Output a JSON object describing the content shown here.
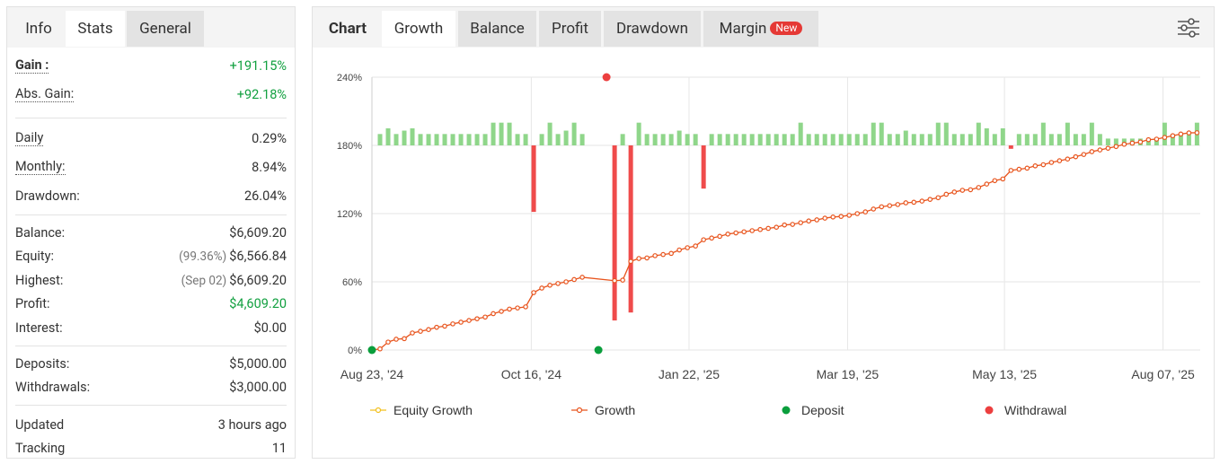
{
  "stats": {
    "tabs": [
      "Info",
      "Stats",
      "General"
    ],
    "groups": [
      [
        {
          "label": "Gain :",
          "value": "+191.15%"
        },
        {
          "label": "Abs. Gain:",
          "value": "+92.18%"
        }
      ],
      [
        {
          "label": "Daily",
          "value": "0.29%"
        },
        {
          "label": "Monthly:",
          "value": "8.94%"
        },
        {
          "label": "Drawdown:",
          "value": "26.04%"
        }
      ],
      [
        {
          "label": "Balance:",
          "value": "$6,609.20"
        },
        {
          "label": "Equity:",
          "note": "(99.36%)",
          "value": "$6,566.84"
        },
        {
          "label": "Highest:",
          "note": "(Sep 02)",
          "value": "$6,609.20"
        },
        {
          "label": "Profit:",
          "value": "$4,609.20"
        },
        {
          "label": "Interest:",
          "value": "$0.00"
        }
      ],
      [
        {
          "label": "Deposits:",
          "value": "$5,000.00"
        },
        {
          "label": "Withdrawals:",
          "value": "$3,000.00"
        }
      ],
      [
        {
          "label": "Updated",
          "value": "3 hours ago"
        },
        {
          "label": "Tracking",
          "value": 11
        }
      ]
    ]
  },
  "chart_tabs": {
    "label": "Chart",
    "tabs": [
      "Growth",
      "Balance",
      "Profit",
      "Drawdown",
      "Margin"
    ],
    "badge": "New"
  },
  "chart_data": {
    "type": "line",
    "xlim": [
      0,
      102.4
    ],
    "xticks": [
      {
        "value": 0,
        "label": "Aug 23, '24"
      },
      {
        "value": 19.7,
        "label": "Oct 16, '24"
      },
      {
        "value": 39.2,
        "label": "Jan 22, '25"
      },
      {
        "value": 58.8,
        "label": "Mar 19, '25"
      },
      {
        "value": 78.2,
        "label": "May 13, '25"
      },
      {
        "value": 97.8,
        "label": "Aug 07, '25"
      }
    ],
    "ylim": [
      0,
      240
    ],
    "yticks": [
      {
        "value": 0,
        "label": "0%"
      },
      {
        "value": 60,
        "label": "60%"
      },
      {
        "value": 120,
        "label": "120%"
      },
      {
        "value": 180,
        "label": "180%"
      },
      {
        "value": 240,
        "label": "240%"
      }
    ],
    "grid": true,
    "series": [
      {
        "name": "Equity Growth",
        "color": "#f2c01e",
        "x": [],
        "values": []
      },
      {
        "name": "Growth",
        "color": "#e8541d",
        "x": [
          0,
          1,
          2,
          3,
          4,
          5,
          6,
          7,
          8,
          9,
          10,
          11,
          12,
          13,
          14,
          15,
          16,
          17,
          18,
          19,
          20,
          21,
          22,
          23,
          24,
          25,
          26,
          30,
          31,
          32,
          33,
          34,
          35,
          36,
          37,
          38,
          39,
          40,
          41,
          42,
          43,
          44,
          45,
          46,
          47,
          48,
          49,
          50,
          51,
          52,
          53,
          54,
          55,
          56,
          57,
          58,
          59,
          60,
          61,
          62,
          63,
          64,
          65,
          66,
          67,
          68,
          69,
          70,
          71,
          72,
          73,
          74,
          75,
          76,
          77,
          78,
          79,
          80,
          81,
          82,
          83,
          84,
          85,
          86,
          87,
          88,
          89,
          90,
          91,
          92,
          93,
          94,
          95,
          96,
          97,
          98,
          99,
          100,
          101,
          102
        ],
        "values": [
          0,
          1,
          7,
          9.5,
          10,
          15,
          16.5,
          18,
          20,
          21,
          23,
          24.5,
          26,
          27.5,
          29,
          32,
          34,
          36,
          37,
          38,
          50.5,
          54.5,
          57,
          58.5,
          60,
          62,
          64,
          61,
          61.5,
          78,
          80.5,
          81,
          83,
          84,
          85,
          88,
          90,
          91.5,
          97,
          98.5,
          100,
          102,
          103,
          104,
          105,
          106,
          107,
          108,
          110,
          110.5,
          112,
          113.5,
          114.5,
          116,
          117,
          117.5,
          118.5,
          120,
          121.5,
          124,
          126,
          127,
          128,
          129.5,
          130,
          131,
          132.5,
          134,
          137,
          139,
          140.5,
          141,
          143,
          146,
          149,
          150.5,
          158,
          159,
          160,
          162,
          163,
          165,
          166.5,
          168,
          170,
          172,
          174.5,
          176,
          177.5,
          179,
          181,
          182,
          183,
          185,
          185.5,
          187,
          188.5,
          190,
          191,
          191.15
        ]
      },
      {
        "name": "Deposit",
        "color": "#0a9e3c",
        "x": [
          0,
          28
        ],
        "values": [
          0,
          0
        ]
      },
      {
        "name": "Withdrawal",
        "color": "#ec3f3f",
        "x": [
          29
        ],
        "values": [
          240
        ]
      }
    ],
    "bars": {
      "up_color": "#8fd68a",
      "down_color": "#ef4b4b",
      "values": [
        null,
        190,
        195,
        190,
        193,
        195,
        190,
        190,
        190,
        190,
        190,
        190,
        190,
        190,
        190,
        200,
        200,
        200,
        190,
        190,
        121.5,
        190,
        200,
        190,
        193,
        200,
        190,
        null,
        null,
        null,
        26,
        190,
        33,
        200,
        190,
        190,
        190,
        190,
        193,
        190,
        190,
        142,
        190,
        190,
        190,
        190,
        190,
        190,
        190,
        190,
        190,
        190,
        190,
        200,
        190,
        190,
        190,
        190,
        190,
        190,
        190,
        190,
        200,
        200,
        190,
        190,
        193,
        190,
        190,
        190,
        200,
        200,
        190,
        190,
        190,
        200,
        195,
        190,
        195,
        177,
        190,
        190,
        190,
        200,
        190,
        190,
        200,
        190,
        190,
        200,
        190,
        186,
        186,
        186,
        186,
        186,
        186,
        186,
        200,
        190,
        190,
        190,
        200
      ]
    }
  }
}
